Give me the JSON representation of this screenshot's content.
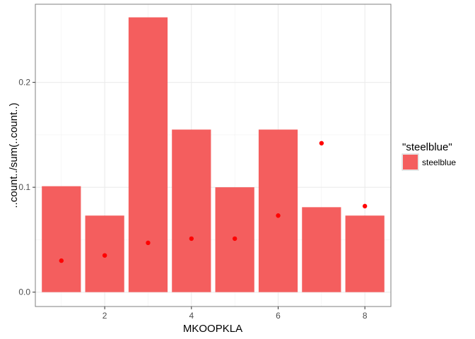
{
  "chart_data": {
    "type": "bar",
    "x": [
      1,
      2,
      3,
      4,
      5,
      6,
      7,
      8
    ],
    "values": [
      0.101,
      0.073,
      0.262,
      0.155,
      0.1,
      0.155,
      0.081,
      0.073
    ],
    "points": [
      0.03,
      0.035,
      0.047,
      0.051,
      0.051,
      0.073,
      0.142,
      0.082
    ],
    "xlabel": "MKOOPKLA",
    "ylabel": "..count../sum(..count..)",
    "xlim": [
      0.4,
      8.6
    ],
    "ylim": [
      -0.0137,
      0.2745
    ],
    "x_ticks": [
      2,
      4,
      6,
      8
    ],
    "x_tick_labels": [
      "2",
      "4",
      "6",
      "8"
    ],
    "y_ticks": [
      0.0,
      0.1,
      0.2
    ],
    "y_tick_labels": [
      "0.0",
      "0.1",
      "0.2"
    ],
    "grid": true,
    "bar_color": "#f45e5e",
    "point_color": "#ff0000",
    "legend": {
      "title": "\"steelblue\"",
      "entries": [
        {
          "label": "steelblue",
          "color": "#f45e5e"
        }
      ],
      "placement": "right"
    }
  }
}
